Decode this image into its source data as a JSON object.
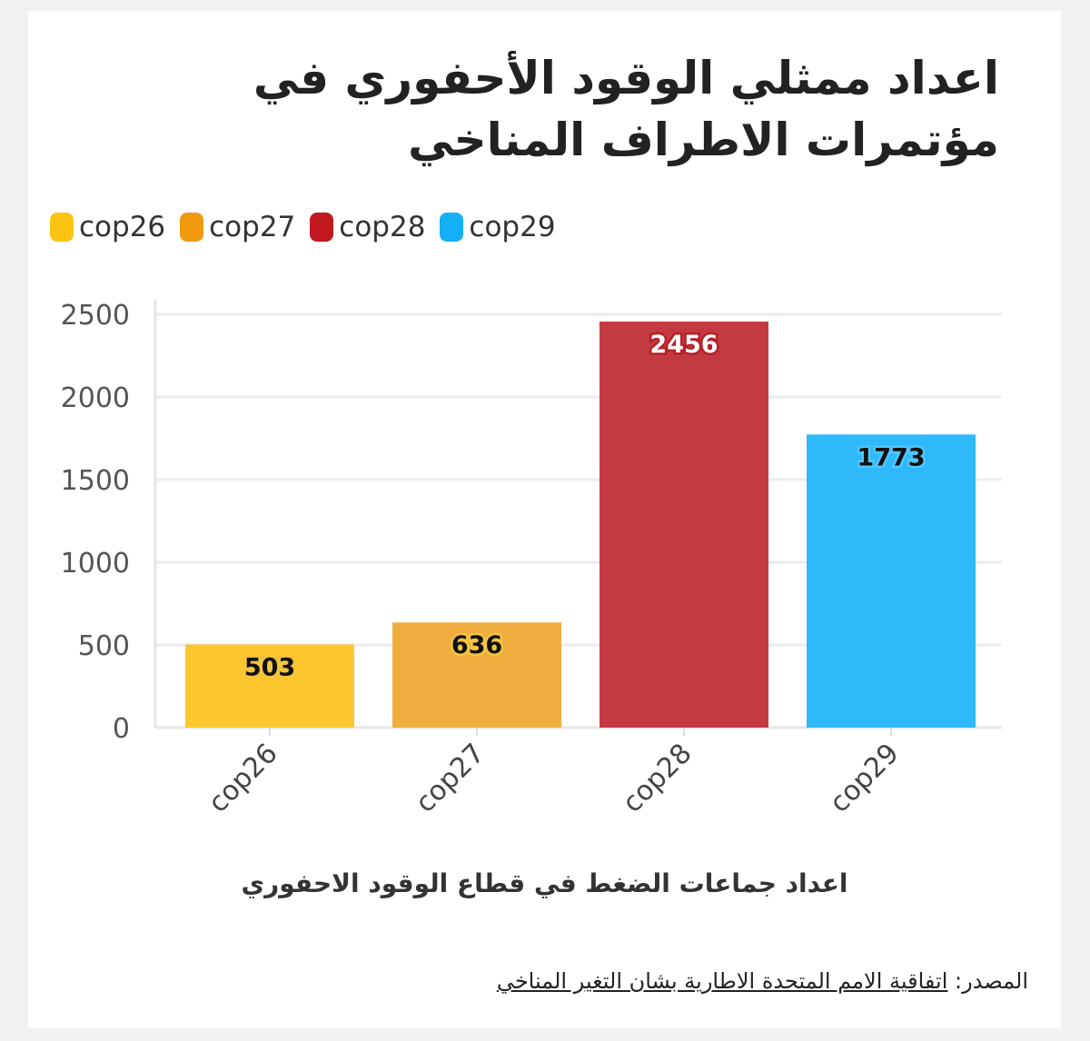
{
  "title": "اعداد ممثلي الوقود الأحفوري في مؤتمرات الاطراف المناخي",
  "source": {
    "label": "المصدر:",
    "link_text": "اتفاقية الامم المتحدة الاطارية بشان التغير المناخي"
  },
  "chart_data": {
    "type": "bar",
    "title": "اعداد ممثلي الوقود الأحفوري في مؤتمرات الاطراف المناخي",
    "xlabel": "اعداد جماعات الضغط في قطاع الوقود الاحفوري",
    "ylabel": "",
    "categories": [
      "cop26",
      "cop27",
      "cop28",
      "cop29"
    ],
    "values": [
      503,
      636,
      2456,
      1773
    ],
    "colors": [
      "#fcc62e",
      "#efad3f",
      "#c33b41",
      "#2fb9fa"
    ],
    "legend_colors": [
      "#fcc312",
      "#ef9a0e",
      "#c21820",
      "#14aff7"
    ],
    "ylim": [
      0,
      2500
    ],
    "yticks": [
      0,
      500,
      1000,
      1500,
      2000,
      2500
    ],
    "legend": [
      "cop26",
      "cop27",
      "cop28",
      "cop29"
    ],
    "legend_position": "top-left",
    "grid": true,
    "x_tick_rotation": -45
  }
}
